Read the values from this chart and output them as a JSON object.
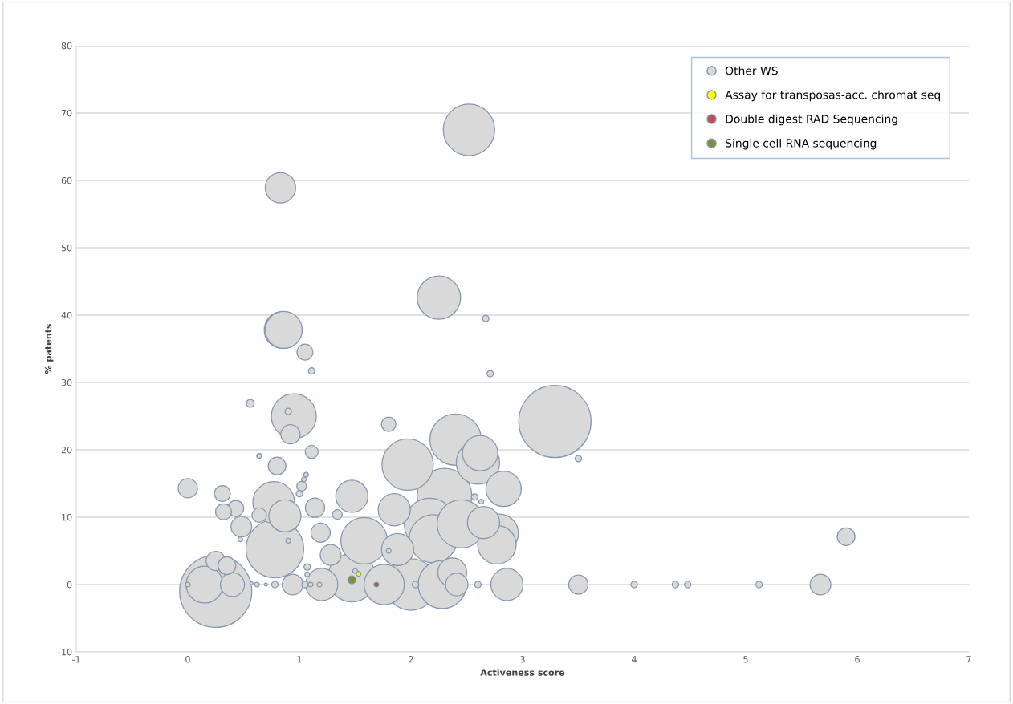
{
  "chart_data": {
    "type": "bubble",
    "xlabel": "Activeness score",
    "ylabel": "% patents",
    "xlim": [
      -1,
      7
    ],
    "xticks": [
      -1,
      0,
      1,
      2,
      3,
      4,
      5,
      6,
      7
    ],
    "ylim": [
      -10,
      80
    ],
    "yticks": [
      -10,
      0,
      10,
      20,
      30,
      40,
      50,
      60,
      70,
      80
    ],
    "grid": "y",
    "legend": "top right",
    "series": [
      {
        "name": "Other WS",
        "color": "#d9d9d9",
        "x": [
          0.25,
          3.29,
          2.52,
          0.78,
          2.3,
          1.97,
          2.4,
          2.17,
          2.2,
          2.0,
          2.45,
          2.28,
          1.47,
          1.58,
          0.95,
          2.25,
          2.6,
          0.77,
          1.76,
          2.79,
          2.77,
          0.85,
          0.15,
          2.62,
          2.83,
          0.86,
          1.47,
          0.87,
          1.85,
          1.88,
          2.65,
          1.2,
          2.86,
          0.83,
          2.37,
          0.4,
          2.41,
          0.48,
          1.28,
          0.94,
          0.92,
          0.0,
          1.14,
          0.25,
          1.19,
          3.5,
          5.67,
          0.8,
          0.35,
          5.9,
          0.43,
          0.32,
          1.05,
          1.8,
          0.31,
          0.64,
          1.11,
          0.64,
          1.34,
          1.02,
          0.56,
          0.9,
          1.11,
          0.64,
          1.06,
          1.04,
          1.0,
          2.67,
          2.71,
          3.5,
          0.9,
          0.47,
          1.8,
          1.5,
          2.57,
          2.63,
          1.07,
          1.07,
          1.18,
          0.78,
          0.7,
          0.62,
          0.57,
          1.05,
          1.1,
          2.6,
          2.04,
          4.0,
          4.37,
          4.48,
          5.12,
          0.0
        ],
        "values": [
          -1,
          24.2,
          67.5,
          5.3,
          13.2,
          17.8,
          21.5,
          9.0,
          6.8,
          0,
          9.0,
          0,
          1.0,
          6.5,
          25,
          42.6,
          18.1,
          12.2,
          0,
          7.6,
          5.9,
          37.8,
          0,
          19.5,
          14.2,
          37.8,
          13.1,
          10.2,
          11.1,
          5.2,
          9.2,
          0,
          0,
          58.9,
          1.8,
          0,
          0,
          8.6,
          4.4,
          0,
          22.3,
          14.3,
          11.4,
          3.5,
          7.7,
          0,
          0,
          17.6,
          2.8,
          7.1,
          11.3,
          10.8,
          34.5,
          23.8,
          13.5,
          10.3,
          19.7,
          19.1,
          10.4,
          14.6,
          26.9,
          25.7,
          31.7,
          19.1,
          16.3,
          15.6,
          13.5,
          39.5,
          31.3,
          18.7,
          6.5,
          6.7,
          5.0,
          2.0,
          13.0,
          12.3,
          2.6,
          1.5,
          0,
          0,
          0,
          0,
          0.2,
          0,
          0,
          0,
          0,
          0,
          0,
          0,
          0,
          0
        ],
        "sizes": [
          1,
          1,
          0.506,
          0.64,
          0.571,
          0.506,
          0.506,
          0.506,
          0.444,
          0.506,
          0.444,
          0.444,
          0.444,
          0.415,
          0.387,
          0.36,
          0.36,
          0.334,
          0.309,
          0.284,
          0.284,
          0.261,
          0.261,
          0.239,
          0.239,
          0.261,
          0.198,
          0.198,
          0.198,
          0.198,
          0.198,
          0.198,
          0.198,
          0.178,
          0.16,
          0.111,
          0.097,
          0.083,
          0.083,
          0.083,
          0.071,
          0.071,
          0.071,
          0.071,
          0.071,
          0.071,
          0.083,
          0.06,
          0.06,
          0.06,
          0.049,
          0.049,
          0.049,
          0.04,
          0.049,
          0.04,
          0.032,
          0.0044,
          0.018,
          0.018,
          0.012,
          0.008,
          0.008,
          0.0044,
          0.0044,
          0.0044,
          0.008,
          0.008,
          0.008,
          0.008,
          0.0044,
          0.0044,
          0.0044,
          0.0044,
          0.008,
          0.0044,
          0.008,
          0.0044,
          0.0044,
          0.008,
          0.002,
          0.0044,
          0.002,
          0.008,
          0.0044,
          0.008,
          0.008,
          0.008,
          0.008,
          0.008,
          0.008,
          0.0044
        ]
      },
      {
        "name": "Assay for transposas-acc. chromat seq",
        "color": "#ffff00",
        "x": [
          1.53
        ],
        "values": [
          1.6
        ],
        "sizes": [
          0.0044
        ]
      },
      {
        "name": "Double digest RAD Sequencing",
        "color": "#c0504d",
        "x": [
          1.69
        ],
        "values": [
          0
        ],
        "sizes": [
          0.0044
        ]
      },
      {
        "name": "Single cell RNA sequencing",
        "color": "#77933c",
        "x": [
          1.47
        ],
        "values": [
          0.7
        ],
        "sizes": [
          0.012
        ]
      }
    ]
  }
}
